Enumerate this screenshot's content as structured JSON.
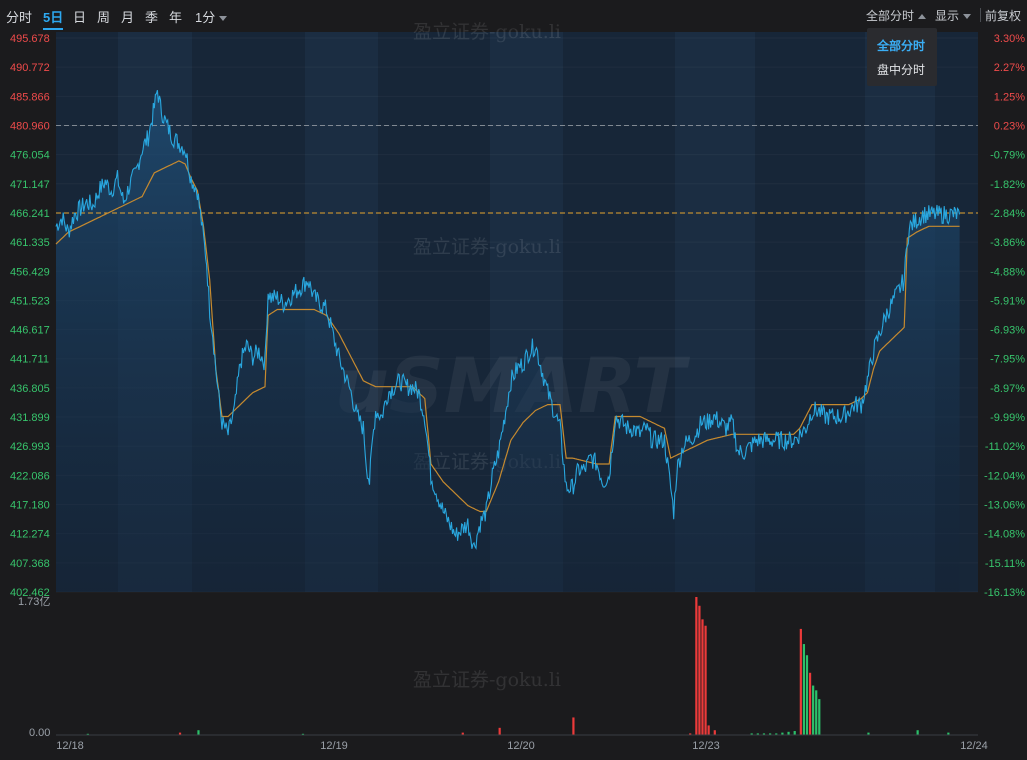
{
  "toolbar": {
    "tabs": [
      {
        "label": "分时",
        "active": false
      },
      {
        "label": "5日",
        "active": true
      },
      {
        "label": "日",
        "active": false
      },
      {
        "label": "周",
        "active": false
      },
      {
        "label": "月",
        "active": false
      },
      {
        "label": "季",
        "active": false
      },
      {
        "label": "年",
        "active": false
      },
      {
        "label": "1分",
        "active": false
      }
    ],
    "right": {
      "session_label": "全部分时",
      "display_label": "显示",
      "adjust_label": "前复权"
    },
    "dropdown": {
      "options": [
        "全部分时",
        "盘中分时"
      ],
      "selected": "全部分时"
    }
  },
  "watermark": {
    "text": "盈立证券-goku.li",
    "logo": "uSMART"
  },
  "colors": {
    "price_line": "#29a7df",
    "avg_line": "#c68a2f",
    "up": "#ec3a3a",
    "down": "#2bc06a",
    "prev_close_line": "#e7a52f",
    "accent": "#2da8f0"
  },
  "chart_data": {
    "type": "line",
    "days": [
      "12/18",
      "12/19",
      "12/20",
      "12/23",
      "12/24"
    ],
    "price_axis": {
      "ticks": [
        "495.678",
        "490.772",
        "485.866",
        "480.960",
        "476.054",
        "471.147",
        "466.241",
        "461.335",
        "456.429",
        "451.523",
        "446.617",
        "441.711",
        "436.805",
        "431.899",
        "426.993",
        "422.086",
        "417.180",
        "412.274",
        "407.368",
        "402.462"
      ],
      "min": 402.462,
      "max": 495.678
    },
    "pct_axis": {
      "ticks": [
        "3.30%",
        "2.27%",
        "1.25%",
        "0.23%",
        "-0.79%",
        "-1.82%",
        "-2.84%",
        "-3.86%",
        "-4.88%",
        "-5.91%",
        "-6.93%",
        "-7.95%",
        "-8.97%",
        "-9.99%",
        "-11.02%",
        "-12.04%",
        "-13.06%",
        "-14.08%",
        "-15.11%",
        "-16.13%"
      ]
    },
    "reference_lines": {
      "prev_close": 466.241,
      "dashed_grey": 480.96
    },
    "price_series": {
      "name": "price",
      "points": [
        [
          0,
          464
        ],
        [
          2,
          465.5
        ],
        [
          4,
          463
        ],
        [
          6,
          466
        ],
        [
          8,
          467
        ],
        [
          10,
          468
        ],
        [
          12,
          467.5
        ],
        [
          14,
          470
        ],
        [
          16,
          471.5
        ],
        [
          18,
          470
        ],
        [
          20,
          472
        ],
        [
          22,
          468
        ],
        [
          24,
          471
        ],
        [
          26,
          473
        ],
        [
          28,
          477
        ],
        [
          30,
          479
        ],
        [
          32,
          484
        ],
        [
          33,
          487
        ],
        [
          34,
          484
        ],
        [
          36,
          481
        ],
        [
          38,
          479
        ],
        [
          40,
          478
        ],
        [
          42,
          477
        ],
        [
          44,
          472
        ],
        [
          46,
          470
        ],
        [
          47,
          466
        ],
        [
          48,
          462
        ],
        [
          49,
          458
        ],
        [
          50,
          450
        ],
        [
          51,
          446
        ],
        [
          52,
          440
        ],
        [
          53,
          435
        ],
        [
          54,
          431
        ],
        [
          56,
          429
        ],
        [
          58,
          433
        ],
        [
          59,
          437
        ],
        [
          60,
          441
        ],
        [
          62,
          444
        ],
        [
          64,
          442
        ],
        [
          66,
          443
        ],
        [
          68,
          441
        ],
        [
          69,
          453
        ],
        [
          70,
          452
        ],
        [
          72,
          452
        ],
        [
          74,
          451
        ],
        [
          76,
          452
        ],
        [
          78,
          453
        ],
        [
          80,
          454
        ],
        [
          82,
          455
        ],
        [
          84,
          452
        ],
        [
          86,
          451
        ],
        [
          88,
          450
        ],
        [
          90,
          446
        ],
        [
          92,
          442
        ],
        [
          94,
          439
        ],
        [
          96,
          436
        ],
        [
          98,
          432
        ],
        [
          100,
          430
        ],
        [
          101,
          424
        ],
        [
          102,
          421
        ],
        [
          103,
          428
        ],
        [
          104,
          433
        ],
        [
          106,
          432
        ],
        [
          108,
          436
        ],
        [
          110,
          437
        ],
        [
          112,
          438
        ],
        [
          114,
          437
        ],
        [
          116,
          437
        ],
        [
          118,
          436
        ],
        [
          120,
          432
        ],
        [
          122,
          422
        ],
        [
          124,
          419
        ],
        [
          126,
          416
        ],
        [
          128,
          414
        ],
        [
          130,
          412
        ],
        [
          132,
          413
        ],
        [
          134,
          414
        ],
        [
          136,
          410
        ],
        [
          138,
          414
        ],
        [
          140,
          416
        ],
        [
          142,
          422
        ],
        [
          144,
          426
        ],
        [
          146,
          432
        ],
        [
          148,
          438
        ],
        [
          150,
          440
        ],
        [
          152,
          441
        ],
        [
          154,
          443
        ],
        [
          156,
          444
        ],
        [
          158,
          440
        ],
        [
          160,
          436
        ],
        [
          162,
          433
        ],
        [
          164,
          430
        ],
        [
          165,
          425
        ],
        [
          166,
          420
        ],
        [
          168,
          420
        ],
        [
          170,
          423
        ],
        [
          172,
          423
        ],
        [
          174,
          425
        ],
        [
          176,
          424
        ],
        [
          178,
          421
        ],
        [
          180,
          422
        ],
        [
          182,
          432
        ],
        [
          184,
          431
        ],
        [
          186,
          430
        ],
        [
          188,
          430
        ],
        [
          190,
          429
        ],
        [
          192,
          430
        ],
        [
          194,
          428
        ],
        [
          196,
          428
        ],
        [
          198,
          428
        ],
        [
          199,
          424
        ],
        [
          200,
          420
        ],
        [
          201,
          416
        ],
        [
          202,
          423
        ],
        [
          204,
          427
        ],
        [
          206,
          428
        ],
        [
          208,
          429
        ],
        [
          210,
          431
        ],
        [
          212,
          431
        ],
        [
          214,
          432
        ],
        [
          216,
          431
        ],
        [
          218,
          430
        ],
        [
          220,
          431
        ],
        [
          222,
          426
        ],
        [
          224,
          426
        ],
        [
          226,
          427
        ],
        [
          228,
          428
        ],
        [
          230,
          428
        ],
        [
          232,
          428
        ],
        [
          234,
          428
        ],
        [
          236,
          428
        ],
        [
          238,
          428
        ],
        [
          240,
          428
        ],
        [
          242,
          429
        ],
        [
          244,
          430
        ],
        [
          246,
          433
        ],
        [
          248,
          433
        ],
        [
          250,
          432
        ],
        [
          252,
          432
        ],
        [
          254,
          432
        ],
        [
          256,
          432
        ],
        [
          258,
          433
        ],
        [
          260,
          434
        ],
        [
          262,
          434
        ],
        [
          264,
          438
        ],
        [
          266,
          443
        ],
        [
          268,
          446
        ],
        [
          270,
          449
        ],
        [
          272,
          451
        ],
        [
          274,
          453
        ],
        [
          276,
          455
        ],
        [
          277,
          462
        ],
        [
          278,
          464
        ],
        [
          280,
          465
        ],
        [
          282,
          466
        ],
        [
          284,
          466
        ],
        [
          286,
          466
        ],
        [
          288,
          466
        ],
        [
          290,
          466
        ],
        [
          292,
          466
        ],
        [
          294,
          466
        ]
      ]
    },
    "avg_series": {
      "name": "average",
      "points": [
        [
          0,
          461
        ],
        [
          4,
          463
        ],
        [
          8,
          464
        ],
        [
          12,
          465
        ],
        [
          16,
          466
        ],
        [
          20,
          467
        ],
        [
          24,
          468
        ],
        [
          28,
          469
        ],
        [
          32,
          473
        ],
        [
          36,
          474
        ],
        [
          40,
          475
        ],
        [
          42,
          474.5
        ],
        [
          44,
          472
        ],
        [
          46,
          470
        ],
        [
          48,
          464
        ],
        [
          50,
          455
        ],
        [
          52,
          440
        ],
        [
          54,
          432
        ],
        [
          56,
          432
        ],
        [
          60,
          434
        ],
        [
          64,
          436
        ],
        [
          68,
          437
        ],
        [
          69,
          449
        ],
        [
          72,
          450
        ],
        [
          76,
          450
        ],
        [
          80,
          450
        ],
        [
          84,
          450
        ],
        [
          88,
          449
        ],
        [
          92,
          446
        ],
        [
          96,
          442
        ],
        [
          100,
          438
        ],
        [
          104,
          437
        ],
        [
          108,
          437
        ],
        [
          112,
          437
        ],
        [
          116,
          437
        ],
        [
          120,
          435
        ],
        [
          122,
          424
        ],
        [
          126,
          421
        ],
        [
          130,
          419
        ],
        [
          134,
          417
        ],
        [
          138,
          416
        ],
        [
          140,
          416
        ],
        [
          144,
          421
        ],
        [
          148,
          428
        ],
        [
          152,
          431
        ],
        [
          156,
          433
        ],
        [
          160,
          434
        ],
        [
          164,
          434
        ],
        [
          166,
          425
        ],
        [
          168,
          425
        ],
        [
          172,
          424.5
        ],
        [
          176,
          424
        ],
        [
          180,
          424
        ],
        [
          182,
          432
        ],
        [
          186,
          432
        ],
        [
          190,
          432
        ],
        [
          194,
          431
        ],
        [
          198,
          430
        ],
        [
          200,
          425
        ],
        [
          204,
          426
        ],
        [
          208,
          427
        ],
        [
          212,
          428
        ],
        [
          216,
          428.5
        ],
        [
          220,
          429
        ],
        [
          224,
          429
        ],
        [
          228,
          429
        ],
        [
          232,
          429
        ],
        [
          236,
          429
        ],
        [
          240,
          429
        ],
        [
          242,
          430
        ],
        [
          246,
          434
        ],
        [
          250,
          434
        ],
        [
          254,
          434
        ],
        [
          258,
          434
        ],
        [
          262,
          435
        ],
        [
          264,
          436
        ],
        [
          266,
          440
        ],
        [
          268,
          443
        ],
        [
          272,
          445
        ],
        [
          276,
          447
        ],
        [
          277,
          462
        ],
        [
          280,
          463
        ],
        [
          284,
          464
        ],
        [
          288,
          464
        ],
        [
          292,
          464
        ],
        [
          294,
          464
        ]
      ]
    },
    "volume_axis": {
      "ticks": [
        "1.73亿",
        "0.00"
      ],
      "max": 173000000
    },
    "volume_series": {
      "name": "volume",
      "bars": [
        [
          10,
          1.5,
          "down"
        ],
        [
          40,
          3,
          "up"
        ],
        [
          46,
          6,
          "down"
        ],
        [
          80,
          1.5,
          "down"
        ],
        [
          132,
          3,
          "up"
        ],
        [
          144,
          9,
          "up"
        ],
        [
          168,
          22,
          "up"
        ],
        [
          206,
          2,
          "up"
        ],
        [
          208,
          173,
          "up"
        ],
        [
          209,
          162,
          "up"
        ],
        [
          210,
          145,
          "up"
        ],
        [
          211,
          137,
          "up"
        ],
        [
          212,
          12,
          "up"
        ],
        [
          214,
          6,
          "up"
        ],
        [
          226,
          2,
          "down"
        ],
        [
          228,
          2,
          "down"
        ],
        [
          230,
          2,
          "down"
        ],
        [
          232,
          2,
          "down"
        ],
        [
          234,
          2,
          "down"
        ],
        [
          236,
          3,
          "down"
        ],
        [
          238,
          4,
          "down"
        ],
        [
          240,
          5,
          "down"
        ],
        [
          242,
          133,
          "up"
        ],
        [
          243,
          114,
          "down"
        ],
        [
          244,
          100,
          "down"
        ],
        [
          245,
          78,
          "up"
        ],
        [
          246,
          62,
          "down"
        ],
        [
          247,
          56,
          "down"
        ],
        [
          248,
          45,
          "down"
        ],
        [
          264,
          3,
          "down"
        ],
        [
          280,
          6,
          "down"
        ],
        [
          290,
          3,
          "down"
        ]
      ]
    }
  }
}
